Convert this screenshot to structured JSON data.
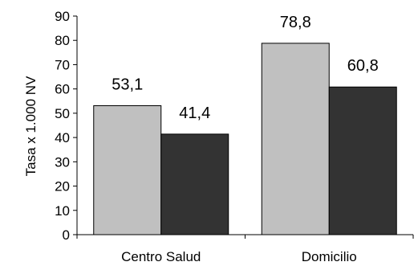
{
  "chart_data": {
    "type": "bar",
    "title": "",
    "xlabel": "",
    "ylabel": "Tasa x 1.000 NV",
    "ylim": [
      0,
      90
    ],
    "y_ticks": [
      0,
      10,
      20,
      30,
      40,
      50,
      60,
      70,
      80,
      90
    ],
    "grid": false,
    "legend": "none",
    "categories": [
      "Centro Salud",
      "Domicilio"
    ],
    "series": [
      {
        "values": [
          53.1,
          78.8
        ],
        "labels": [
          "53,1",
          "78,8"
        ],
        "color": "#c0c0c0"
      },
      {
        "values": [
          41.4,
          60.8
        ],
        "labels": [
          "41,4",
          "60,8"
        ],
        "color": "#333333"
      }
    ]
  }
}
